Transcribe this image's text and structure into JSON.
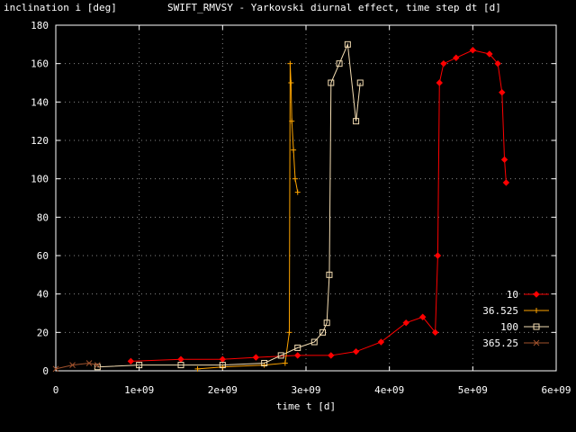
{
  "chart_data": {
    "type": "scatter",
    "title": "SWIFT_RMVSY - Yarkovski diurnal effect, time step dt [d]",
    "xlabel": "time t [d]",
    "ylabel": "inclination i [deg]",
    "xlim": [
      0,
      6000000000
    ],
    "ylim": [
      0,
      180
    ],
    "x_ticks": [
      0,
      1000000000,
      2000000000,
      3000000000,
      4000000000,
      5000000000,
      6000000000
    ],
    "x_tick_labels": [
      "0",
      "1e+09",
      "2e+09",
      "3e+09",
      "4e+09",
      "5e+09",
      "6e+09"
    ],
    "y_ticks": [
      0,
      20,
      40,
      60,
      80,
      100,
      120,
      140,
      160,
      180
    ],
    "y_tick_labels": [
      "0",
      "20",
      "40",
      "60",
      "80",
      "100",
      "120",
      "140",
      "160",
      "180"
    ],
    "grid": true,
    "legend_position": "lower-right",
    "series": [
      {
        "name": "10",
        "color": "#ff0000",
        "marker": "diamond",
        "x": [
          900000000.0,
          1500000000.0,
          2000000000.0,
          2400000000.0,
          2900000000.0,
          3300000000.0,
          3600000000.0,
          3900000000.0,
          4200000000.0,
          4400000000.0,
          4550000000.0,
          4580000000.0,
          4600000000.0,
          4650000000.0,
          4800000000.0,
          5000000000.0,
          5200000000.0,
          5300000000.0,
          5350000000.0,
          5380000000.0,
          5400000000.0
        ],
        "y": [
          5,
          6,
          6,
          7,
          8,
          8,
          10,
          15,
          25,
          28,
          20,
          60,
          150,
          160,
          163,
          167,
          165,
          160,
          145,
          110,
          98
        ]
      },
      {
        "name": "36.525",
        "color": "#ffa500",
        "marker": "plus",
        "x": [
          1700000000.0,
          2000000000.0,
          2500000000.0,
          2750000000.0,
          2800000000.0,
          2810000000.0,
          2820000000.0,
          2830000000.0,
          2850000000.0,
          2870000000.0,
          2900000000.0
        ],
        "y": [
          1,
          2,
          3,
          4,
          20,
          160,
          150,
          130,
          115,
          100,
          93
        ]
      },
      {
        "name": "100",
        "color": "#f5deb3",
        "marker": "square",
        "x": [
          500000000.0,
          1000000000.0,
          1500000000.0,
          2000000000.0,
          2500000000.0,
          2700000000.0,
          2900000000.0,
          3100000000.0,
          3200000000.0,
          3250000000.0,
          3280000000.0,
          3300000000.0,
          3400000000.0,
          3500000000.0,
          3600000000.0,
          3650000000.0
        ],
        "y": [
          2,
          3,
          3,
          3,
          4,
          8,
          12,
          15,
          20,
          25,
          50,
          150,
          160,
          170,
          130,
          150
        ]
      },
      {
        "name": "365.25",
        "color": "#a0522d",
        "marker": "cross",
        "x": [
          0,
          200000000.0,
          400000000.0,
          500000000.0
        ],
        "y": [
          1,
          3,
          4,
          3
        ]
      }
    ]
  }
}
